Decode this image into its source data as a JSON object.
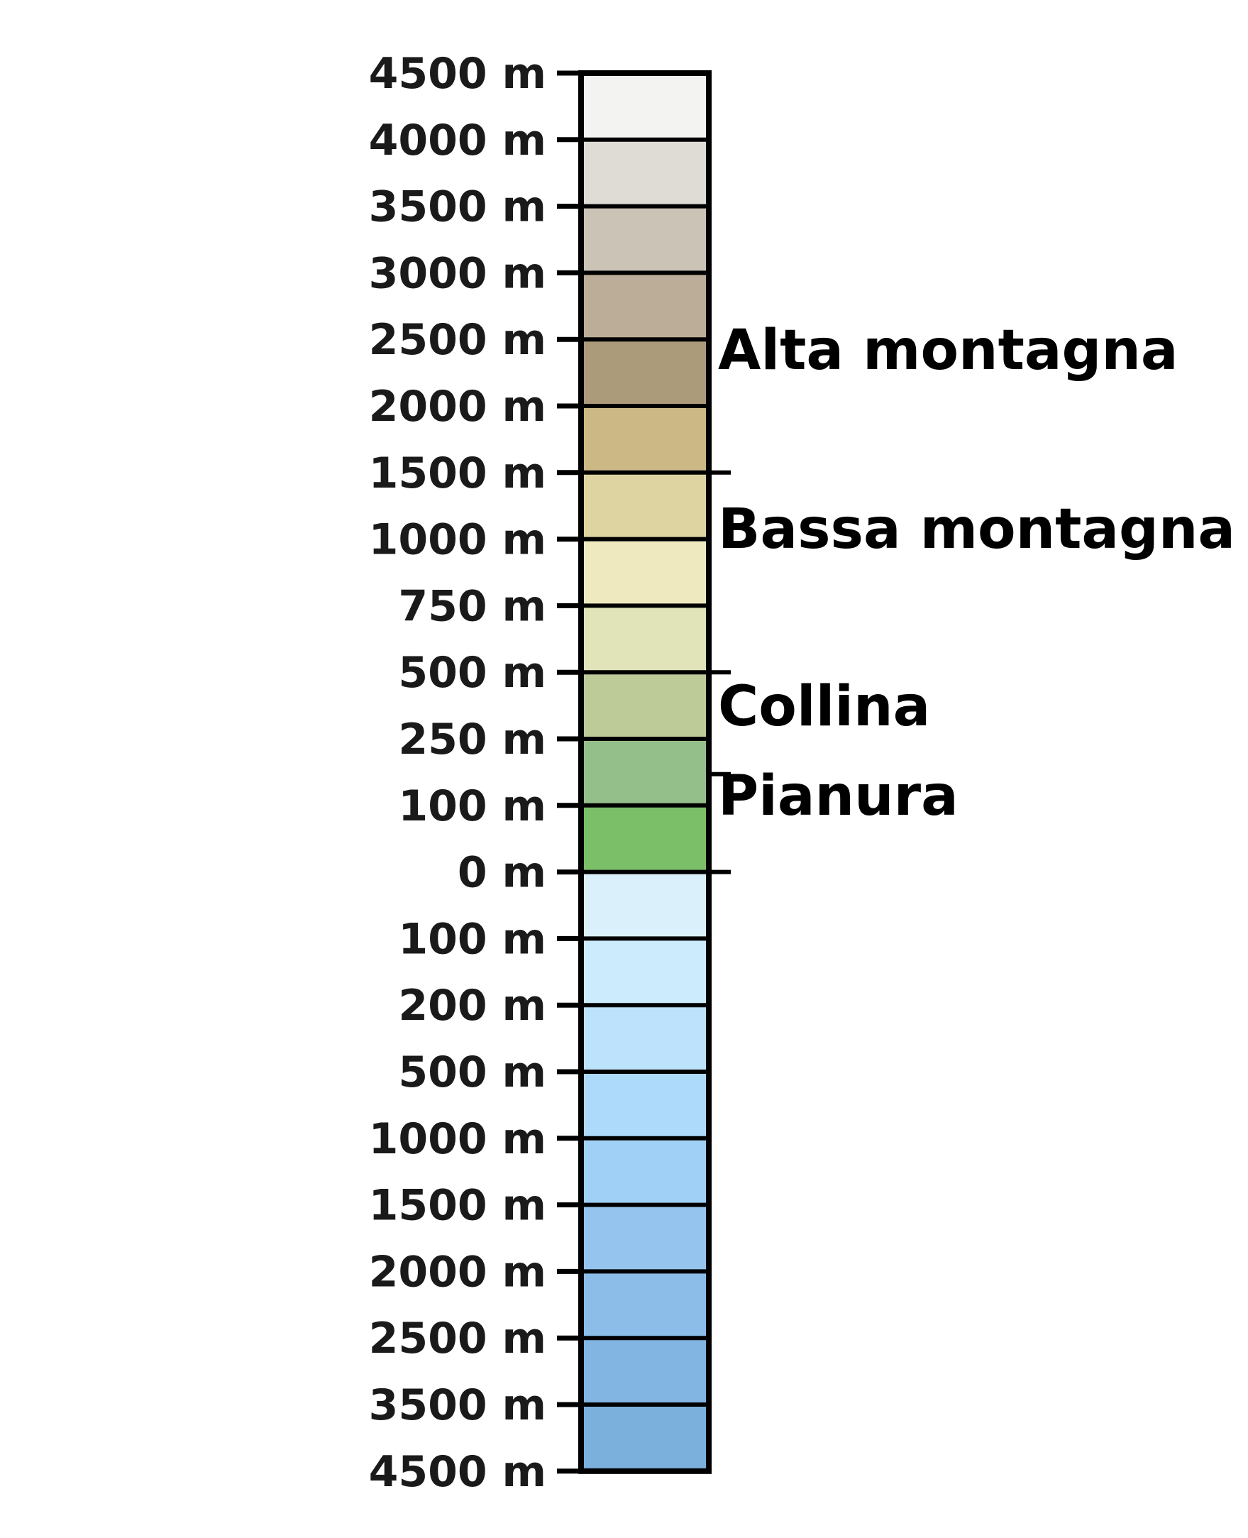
{
  "ticks": [
    "4500 m",
    "4000 m",
    "3500 m",
    "3000 m",
    "2500 m",
    "2000 m",
    "1500 m",
    "1000 m",
    "750 m",
    "500 m",
    "250 m",
    "100 m",
    "0 m",
    "100 m",
    "200 m",
    "500 m",
    "1000 m",
    "1500 m",
    "2000 m",
    "2500 m",
    "3500 m",
    "4500 m"
  ],
  "bands": [
    {
      "color": "#f3f3f1"
    },
    {
      "color": "#dfdcd5"
    },
    {
      "color": "#cbc3b5"
    },
    {
      "color": "#bbad98"
    },
    {
      "color": "#ab9b7a"
    },
    {
      "color": "#cbb885"
    },
    {
      "color": "#ddd4a2"
    },
    {
      "color": "#efe9c0"
    },
    {
      "color": "#e1e3b8"
    },
    {
      "color": "#bdcb98"
    },
    {
      "color": "#95bf8a"
    },
    {
      "color": "#7bbf68"
    },
    {
      "color": "#daf1fc"
    },
    {
      "color": "#ccebfc"
    },
    {
      "color": "#bde2fb"
    },
    {
      "color": "#addafa"
    },
    {
      "color": "#a0d0f5"
    },
    {
      "color": "#95c5ee"
    },
    {
      "color": "#8bbde8"
    },
    {
      "color": "#82b5e2"
    },
    {
      "color": "#7bafdc"
    }
  ],
  "zones": [
    {
      "label": "Alta montagna",
      "from_tick": 0,
      "to_tick": 6
    },
    {
      "label": "Bassa montagna",
      "from_tick": 6,
      "to_tick": 9
    },
    {
      "label": "Collina",
      "from_tick": 9,
      "to_tick": 11
    },
    {
      "label": "Pianura",
      "from_tick": 11,
      "to_tick": 12
    }
  ]
}
